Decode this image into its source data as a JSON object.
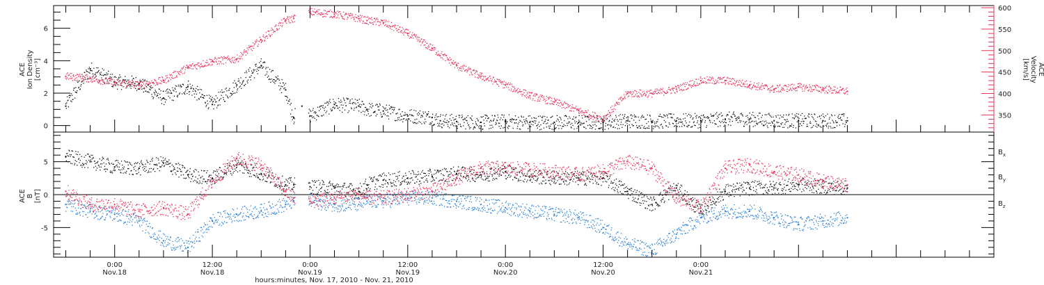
{
  "chart_data": [
    {
      "type": "scatter",
      "panel": "plasma",
      "ylabel": [
        "ACE",
        "Ion Density",
        "[cm⁻³]"
      ],
      "ylabel_right": [
        "ACE",
        "Velocity",
        "[km/s]"
      ],
      "ylim": [
        -0.4,
        7.4
      ],
      "yticks": [
        "0",
        "2",
        "4",
        "6"
      ],
      "ylim_right": [
        310,
        605
      ],
      "yticks_right": [
        "350",
        "400",
        "450",
        "500",
        "550",
        "600"
      ],
      "colors": {
        "density": "#111111",
        "velocity": "#e8325a"
      },
      "series": [
        {
          "key": "density",
          "axis": "left",
          "x": [
            -6,
            -3,
            0,
            3,
            6,
            9,
            12,
            15,
            18,
            21,
            22,
            23,
            24,
            27,
            30,
            31,
            33,
            36,
            39,
            40,
            42,
            45,
            48,
            51,
            54,
            57,
            60,
            63,
            66,
            69,
            72,
            75,
            78,
            81,
            84,
            87,
            90
          ],
          "values": [
            1.2,
            3.5,
            2.7,
            2.6,
            1.7,
            2.4,
            1.3,
            2.5,
            3.7,
            2.2,
            0.5,
            1.2,
            0.6,
            1.3,
            1.2,
            1.0,
            0.9,
            0.6,
            0.5,
            0.3,
            0.25,
            0.2,
            0.25,
            0.2,
            0.2,
            0.2,
            0.2,
            0.3,
            0.25,
            0.3,
            0.3,
            0.4,
            0.4,
            0.3,
            0.3,
            0.3,
            0.3
          ]
        },
        {
          "key": "velocity",
          "axis": "right",
          "x": [
            -6,
            -3,
            0,
            3,
            6,
            9,
            12,
            15,
            18,
            21,
            22,
            24,
            27,
            30,
            31,
            33,
            36,
            39,
            42,
            45,
            48,
            51,
            54,
            57,
            60,
            63,
            66,
            69,
            72,
            75,
            78,
            81,
            84,
            87,
            90
          ],
          "values": [
            440,
            435,
            425,
            420,
            430,
            460,
            475,
            480,
            525,
            570,
            575,
            590,
            585,
            575,
            570,
            565,
            540,
            505,
            465,
            440,
            420,
            395,
            380,
            360,
            340,
            400,
            400,
            410,
            430,
            430,
            420,
            410,
            415,
            410,
            405
          ]
        }
      ]
    },
    {
      "type": "scatter",
      "panel": "magnetic",
      "ylabel": [
        "ACE",
        "B",
        "[nT]"
      ],
      "ylim": [
        -9.5,
        9.5
      ],
      "yticks": [
        "-5",
        "0",
        "5"
      ],
      "legend_position": "right",
      "series": [
        {
          "key": "bx",
          "name": "B",
          "sub": "x",
          "color": "#111111",
          "x": [
            -6,
            -3,
            0,
            3,
            6,
            9,
            12,
            15,
            18,
            21,
            22,
            24,
            27,
            30,
            31,
            33,
            36,
            39,
            42,
            45,
            48,
            51,
            54,
            57,
            60,
            63,
            66,
            69,
            72,
            75,
            78,
            81,
            84,
            87,
            90
          ],
          "values": [
            5.8,
            5.0,
            4.2,
            4.0,
            4.8,
            3.0,
            2.5,
            4.5,
            3.2,
            1.5,
            1.5,
            1.2,
            1.0,
            0.5,
            1.5,
            2.2,
            2.5,
            2.8,
            3.2,
            3.0,
            3.5,
            2.8,
            2.5,
            2.5,
            2.5,
            0.5,
            -1.5,
            1.0,
            -2.5,
            0.5,
            1.0,
            1.0,
            1.5,
            1.2,
            1.0
          ]
        },
        {
          "key": "by",
          "name": "B",
          "sub": "y",
          "color": "#2a7fd4",
          "x": [
            -6,
            -3,
            0,
            3,
            6,
            9,
            12,
            15,
            18,
            21,
            22,
            24,
            27,
            30,
            31,
            33,
            36,
            39,
            42,
            45,
            48,
            51,
            54,
            57,
            60,
            63,
            66,
            69,
            72,
            75,
            78,
            81,
            84,
            87,
            90
          ],
          "values": [
            -1.5,
            -2.5,
            -3.0,
            -4.0,
            -7.0,
            -8.0,
            -4.0,
            -3.0,
            -2.5,
            -1.5,
            -1.0,
            -1.0,
            -1.5,
            -1.5,
            -1.0,
            -1.0,
            -0.5,
            -0.5,
            -1.0,
            -1.5,
            -2.0,
            -2.5,
            -3.0,
            -3.5,
            -5.0,
            -7.5,
            -8.5,
            -6.0,
            -3.5,
            -2.5,
            -2.5,
            -3.5,
            -4.5,
            -4.0,
            -3.5
          ]
        },
        {
          "key": "bz",
          "name": "B",
          "sub": "z",
          "color": "#e8325a",
          "x": [
            -6,
            -3,
            0,
            3,
            6,
            9,
            12,
            15,
            18,
            21,
            22,
            24,
            27,
            30,
            31,
            33,
            36,
            39,
            42,
            45,
            48,
            51,
            54,
            57,
            60,
            63,
            66,
            69,
            72,
            75,
            78,
            81,
            84,
            87,
            90
          ],
          "values": [
            0.5,
            -1.5,
            -1.5,
            -2.5,
            -2.0,
            -3.0,
            2.0,
            5.5,
            4.5,
            0.5,
            -0.5,
            -1.0,
            -0.5,
            0.0,
            -0.5,
            -0.5,
            0.0,
            0.5,
            2.5,
            4.0,
            4.0,
            3.8,
            3.5,
            3.0,
            3.5,
            5.0,
            4.0,
            -0.5,
            -2.0,
            4.0,
            4.5,
            3.5,
            3.0,
            2.0,
            1.5
          ]
        }
      ]
    }
  ],
  "x_axis": {
    "range_hours": [
      -7.5,
      108
    ],
    "ticks": [
      {
        "h": 0,
        "time": "0:00",
        "date": "Nov.18"
      },
      {
        "h": 12,
        "time": "12:00",
        "date": "Nov.18"
      },
      {
        "h": 24,
        "time": "0:00",
        "date": "Nov.19"
      },
      {
        "h": 36,
        "time": "12:00",
        "date": "Nov.19"
      },
      {
        "h": 48,
        "time": "0:00",
        "date": "Nov.20"
      },
      {
        "h": 60,
        "time": "12:00",
        "date": "Nov.20"
      },
      {
        "h": 72,
        "time": "0:00",
        "date": "Nov.21"
      }
    ],
    "title": "hours:minutes, Nov. 17, 2010 - Nov. 21, 2010"
  }
}
